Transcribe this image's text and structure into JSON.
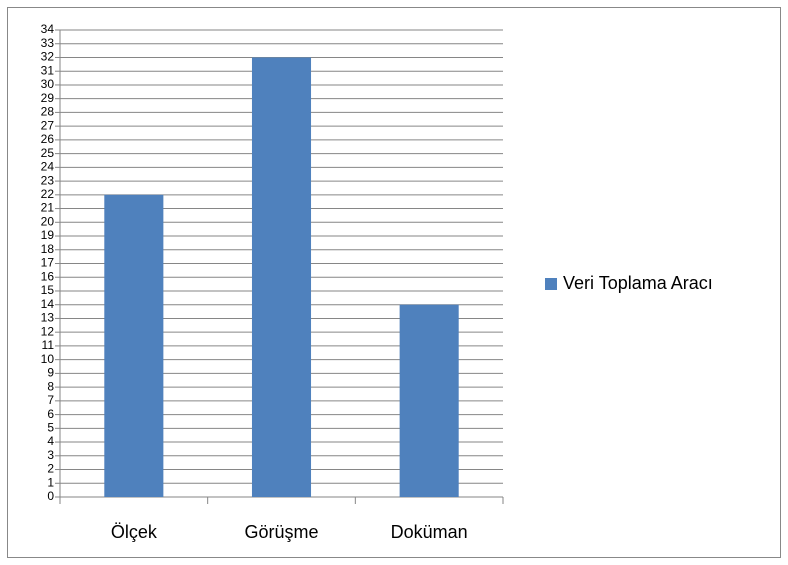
{
  "chart_data": {
    "type": "bar",
    "categories": [
      "Ölçek",
      "Görüşme",
      "Doküman"
    ],
    "series": [
      {
        "name": "Veri Toplama Aracı",
        "color": "#4f81bd",
        "values": [
          22,
          32,
          14
        ]
      }
    ],
    "ylim": [
      0,
      34
    ],
    "yticks": [
      0,
      1,
      2,
      3,
      4,
      5,
      6,
      7,
      8,
      9,
      10,
      11,
      12,
      13,
      14,
      15,
      16,
      17,
      18,
      19,
      20,
      21,
      22,
      23,
      24,
      25,
      26,
      27,
      28,
      29,
      30,
      31,
      32,
      33,
      34
    ],
    "grid": true,
    "legend": "right"
  }
}
